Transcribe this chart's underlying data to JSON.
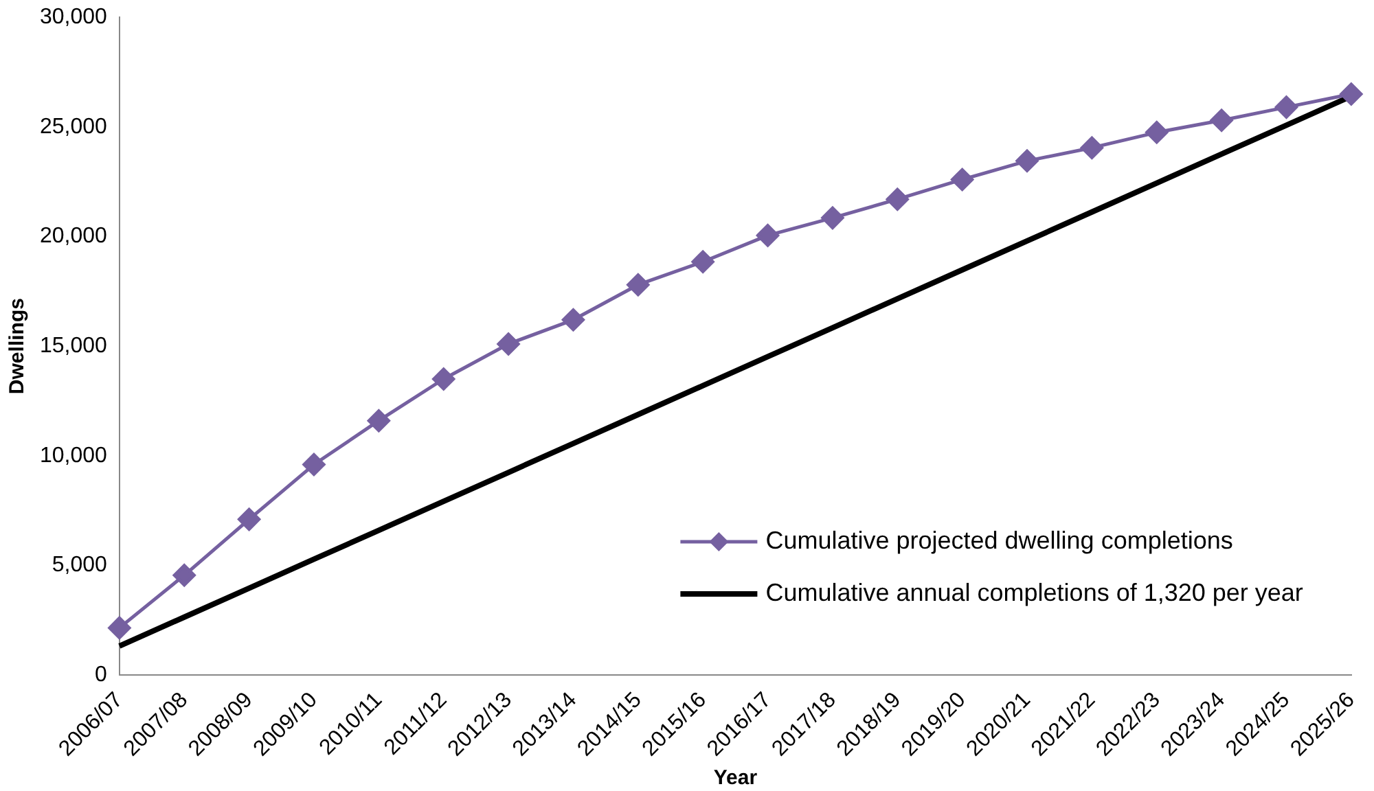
{
  "chart_data": {
    "type": "line",
    "xlabel": "Year",
    "ylabel": "Dwellings",
    "categories": [
      "2006/07",
      "2007/08",
      "2008/09",
      "2009/10",
      "2010/11",
      "2011/12",
      "2012/13",
      "2013/14",
      "2014/15",
      "2015/16",
      "2016/17",
      "2017/18",
      "2018/19",
      "2019/20",
      "2020/21",
      "2021/22",
      "2022/23",
      "2023/24",
      "2024/25",
      "2025/26"
    ],
    "series": [
      {
        "name": "Cumulative projected dwelling completions",
        "color": "#7560a0",
        "marker": "diamond",
        "values": [
          2150,
          4550,
          7100,
          9600,
          11600,
          13500,
          15100,
          16200,
          17800,
          18850,
          20050,
          20850,
          21700,
          22600,
          23450,
          24050,
          24750,
          25300,
          25900,
          26500
        ]
      },
      {
        "name": "Cumulative annual completions of 1,320 per year",
        "color": "#000000",
        "marker": "none",
        "values": [
          1320,
          2640,
          3960,
          5280,
          6600,
          7920,
          9240,
          10560,
          11880,
          13200,
          14520,
          15840,
          17160,
          18480,
          19800,
          21120,
          22440,
          23760,
          25080,
          26400
        ]
      }
    ],
    "ylim": [
      0,
      30000
    ],
    "yticks": [
      {
        "value": 0,
        "label": "0"
      },
      {
        "value": 5000,
        "label": "5,000"
      },
      {
        "value": 10000,
        "label": "10,000"
      },
      {
        "value": 15000,
        "label": "15,000"
      },
      {
        "value": 20000,
        "label": "20,000"
      },
      {
        "value": 25000,
        "label": "25,000"
      },
      {
        "value": 30000,
        "label": "30,000"
      }
    ],
    "grid": false,
    "legend": "bottom right"
  }
}
